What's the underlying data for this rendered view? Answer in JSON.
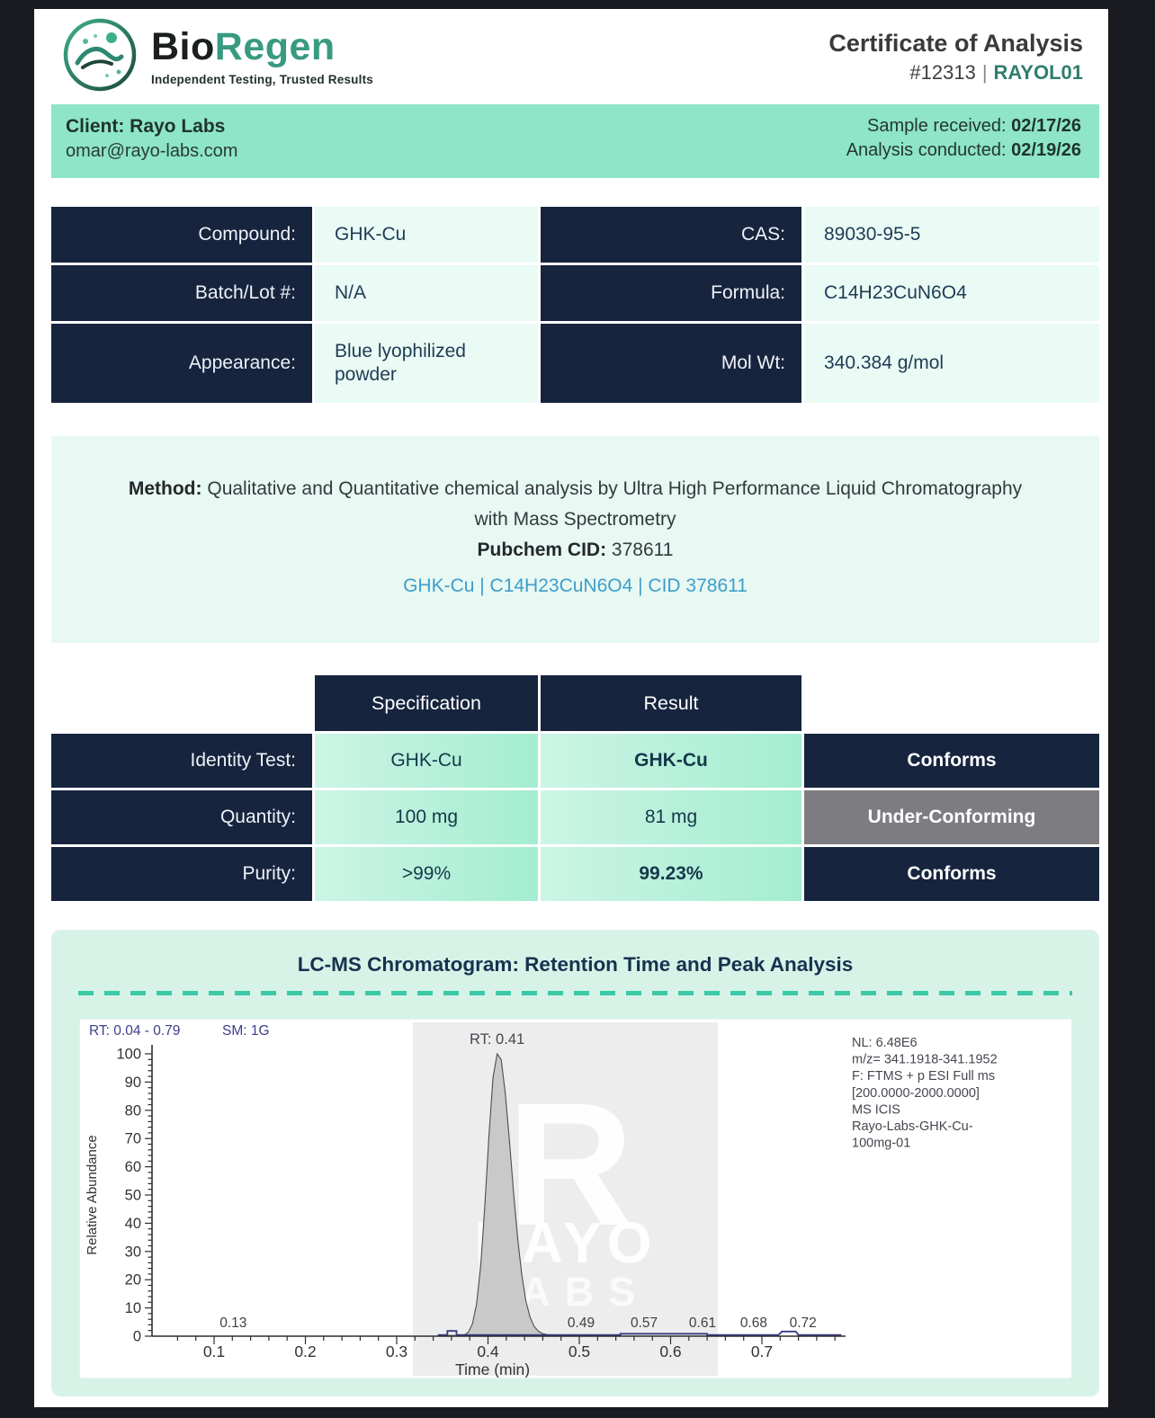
{
  "brand": {
    "name_part1": "Bio",
    "name_part2": "Regen",
    "tagline": "Independent Testing, Trusted Results"
  },
  "header": {
    "title": "Certificate of Analysis",
    "cert_number": "#12313",
    "separator": "|",
    "client_code": "RAYOL01"
  },
  "client_bar": {
    "client_line": "Client: Rayo Labs",
    "client_email": "omar@rayo-labs.com",
    "received_label": "Sample received:",
    "received_date": "02/17/26",
    "conducted_label": "Analysis conducted:",
    "conducted_date": "02/19/26"
  },
  "compound_table": {
    "rows": [
      {
        "label1": "Compound:",
        "value1": "GHK-Cu",
        "label2": "CAS:",
        "value2": "89030-95-5"
      },
      {
        "label1": "Batch/Lot #:",
        "value1": "N/A",
        "label2": "Formula:",
        "value2": "C14H23CuN6O4"
      },
      {
        "label1": "Appearance:",
        "value1": "Blue lyophilized powder",
        "label2": "Mol Wt:",
        "value2": "340.384 g/mol"
      }
    ]
  },
  "method": {
    "label": "Method:",
    "text": "Qualitative and Quantitative chemical analysis by Ultra High Performance Liquid Chromatography with Mass Spectrometry",
    "cid_label": "Pubchem CID:",
    "cid_value": "378611",
    "link_text": "GHK-Cu | C14H23CuN6O4 | CID 378611"
  },
  "results_table": {
    "col_headers": [
      "Specification",
      "Result"
    ],
    "rows": [
      {
        "label": "Identity Test:",
        "spec": "GHK-Cu",
        "result": "GHK-Cu",
        "status": "Conforms"
      },
      {
        "label": "Quantity:",
        "spec": "100 mg",
        "result": "81 mg",
        "status": "Under-Conforming"
      },
      {
        "label": "Purity:",
        "spec": ">99%",
        "result": "99.23%",
        "status": "Conforms"
      }
    ]
  },
  "chromatogram": {
    "section_title": "LC-MS Chromatogram: Retention Time and Peak Analysis",
    "chart_data": {
      "type": "area",
      "header_left": "RT: 0.04 - 0.79",
      "header_sm": "SM: 1G",
      "xlabel": "Time (min)",
      "ylabel": "Relative Abundance",
      "xlim": [
        0.04,
        0.79
      ],
      "ylim": [
        0,
        100
      ],
      "x_major_ticks": [
        0.1,
        0.2,
        0.3,
        0.4,
        0.5,
        0.6,
        0.7
      ],
      "y_major_ticks": [
        0,
        10,
        20,
        30,
        40,
        50,
        60,
        70,
        80,
        90,
        100
      ],
      "main_peak": {
        "rt": 0.41,
        "height": 100,
        "label": "RT: 0.41"
      },
      "baseline_annotations": [
        {
          "label": "0.13",
          "t": 0.121
        },
        {
          "label": "0.49",
          "t": 0.502
        },
        {
          "label": "0.57",
          "t": 0.571
        },
        {
          "label": "0.61",
          "t": 0.635
        },
        {
          "label": "0.68",
          "t": 0.691
        },
        {
          "label": "0.72",
          "t": 0.745
        }
      ],
      "info_lines": [
        "NL: 6.48E6",
        "m/z= 341.1918-341.1952",
        "F: FTMS + p ESI Full ms",
        "[200.0000-2000.0000]",
        "MS  ICIS",
        "Rayo-Labs-GHK-Cu-",
        "100mg-01"
      ],
      "watermark": {
        "letter": "R",
        "word1": "RAYO",
        "word2": "LABS"
      }
    }
  },
  "colors": {
    "navy": "#16243e",
    "mint_bar": "#8ee5c8",
    "mint_light": "#eafaf4",
    "mint_section": "#d7f3e8",
    "teal_accent": "#3bc9a6",
    "brand_teal": "#389a81",
    "link_blue": "#3e9ecb",
    "status_gray": "#7d7d81",
    "trace_blue": "#383b84"
  }
}
